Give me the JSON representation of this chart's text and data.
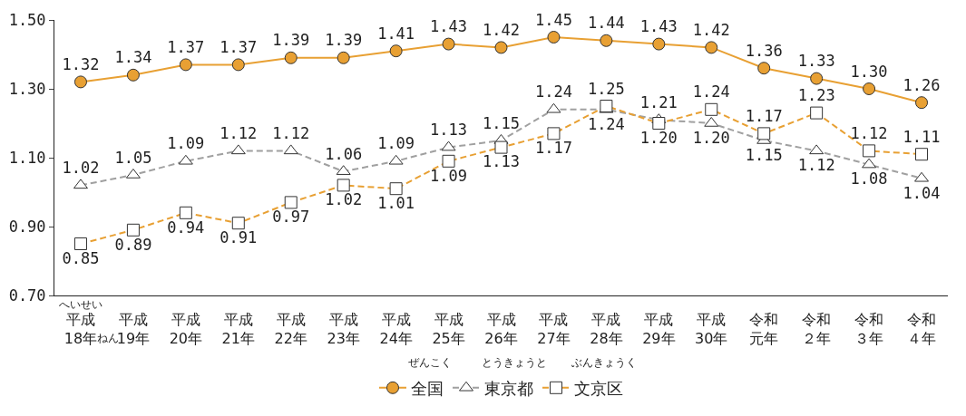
{
  "chart_data": {
    "type": "line",
    "categories": [
      "平成18年",
      "平成19年",
      "平成20年",
      "平成21年",
      "平成22年",
      "平成23年",
      "平成24年",
      "平成25年",
      "平成26年",
      "平成27年",
      "平成28年",
      "平成29年",
      "平成30年",
      "令和元年",
      "令和２年",
      "令和３年",
      "令和４年"
    ],
    "series": [
      {
        "name": "全国",
        "color": "#e8a033",
        "marker": "circle",
        "line_style": "solid",
        "values": [
          1.32,
          1.34,
          1.37,
          1.37,
          1.39,
          1.39,
          1.41,
          1.43,
          1.42,
          1.45,
          1.44,
          1.43,
          1.42,
          1.36,
          1.33,
          1.3,
          1.26
        ],
        "value_labels": [
          "1.32",
          "1.34",
          "1.37",
          "1.37",
          "1.39",
          "1.39",
          "1.41",
          "1.43",
          "1.42",
          "1.45",
          "1.44",
          "1.43",
          "1.42",
          "1.36",
          "1.33",
          "1.30",
          "1.26"
        ]
      },
      {
        "name": "東京都",
        "color": "#a0a0a0",
        "marker": "triangle",
        "line_style": "dashed",
        "values": [
          1.02,
          1.05,
          1.09,
          1.12,
          1.12,
          1.06,
          1.09,
          1.13,
          1.15,
          1.24,
          1.24,
          1.21,
          1.2,
          1.15,
          1.12,
          1.08,
          1.04
        ],
        "value_labels": [
          "1.02",
          "1.05",
          "1.09",
          "1.12",
          "1.12",
          "1.06",
          "1.09",
          "1.13",
          "1.15",
          "1.24",
          "1.24",
          "1.21",
          "1.20",
          "1.15",
          "1.12",
          "1.08",
          "1.04"
        ]
      },
      {
        "name": "文京区",
        "color": "#e8a033",
        "marker": "square",
        "line_style": "dashed",
        "values": [
          0.85,
          0.89,
          0.94,
          0.91,
          0.97,
          1.02,
          1.01,
          1.09,
          1.13,
          1.17,
          1.25,
          1.2,
          1.24,
          1.17,
          1.23,
          1.12,
          1.11
        ],
        "value_labels": [
          "0.85",
          "0.89",
          "0.94",
          "0.91",
          "0.97",
          "1.02",
          "1.01",
          "1.09",
          "1.13",
          "1.17",
          "1.25",
          "1.20",
          "1.24",
          "1.17",
          "1.23",
          "1.12",
          "1.11"
        ]
      }
    ],
    "ylim": [
      0.7,
      1.5
    ],
    "yticks": [
      {
        "value": 0.7,
        "label": "0.70"
      },
      {
        "value": 0.9,
        "label": "0.90"
      },
      {
        "value": 1.1,
        "label": "1.10"
      },
      {
        "value": 1.3,
        "label": "1.30"
      },
      {
        "value": 1.5,
        "label": "1.50"
      }
    ],
    "grid": false,
    "legend": "bottom",
    "annotations": [
      "へいせい",
      "ねん",
      "ぜんこく",
      "とうきょうと",
      "ぶんきょうく"
    ]
  }
}
